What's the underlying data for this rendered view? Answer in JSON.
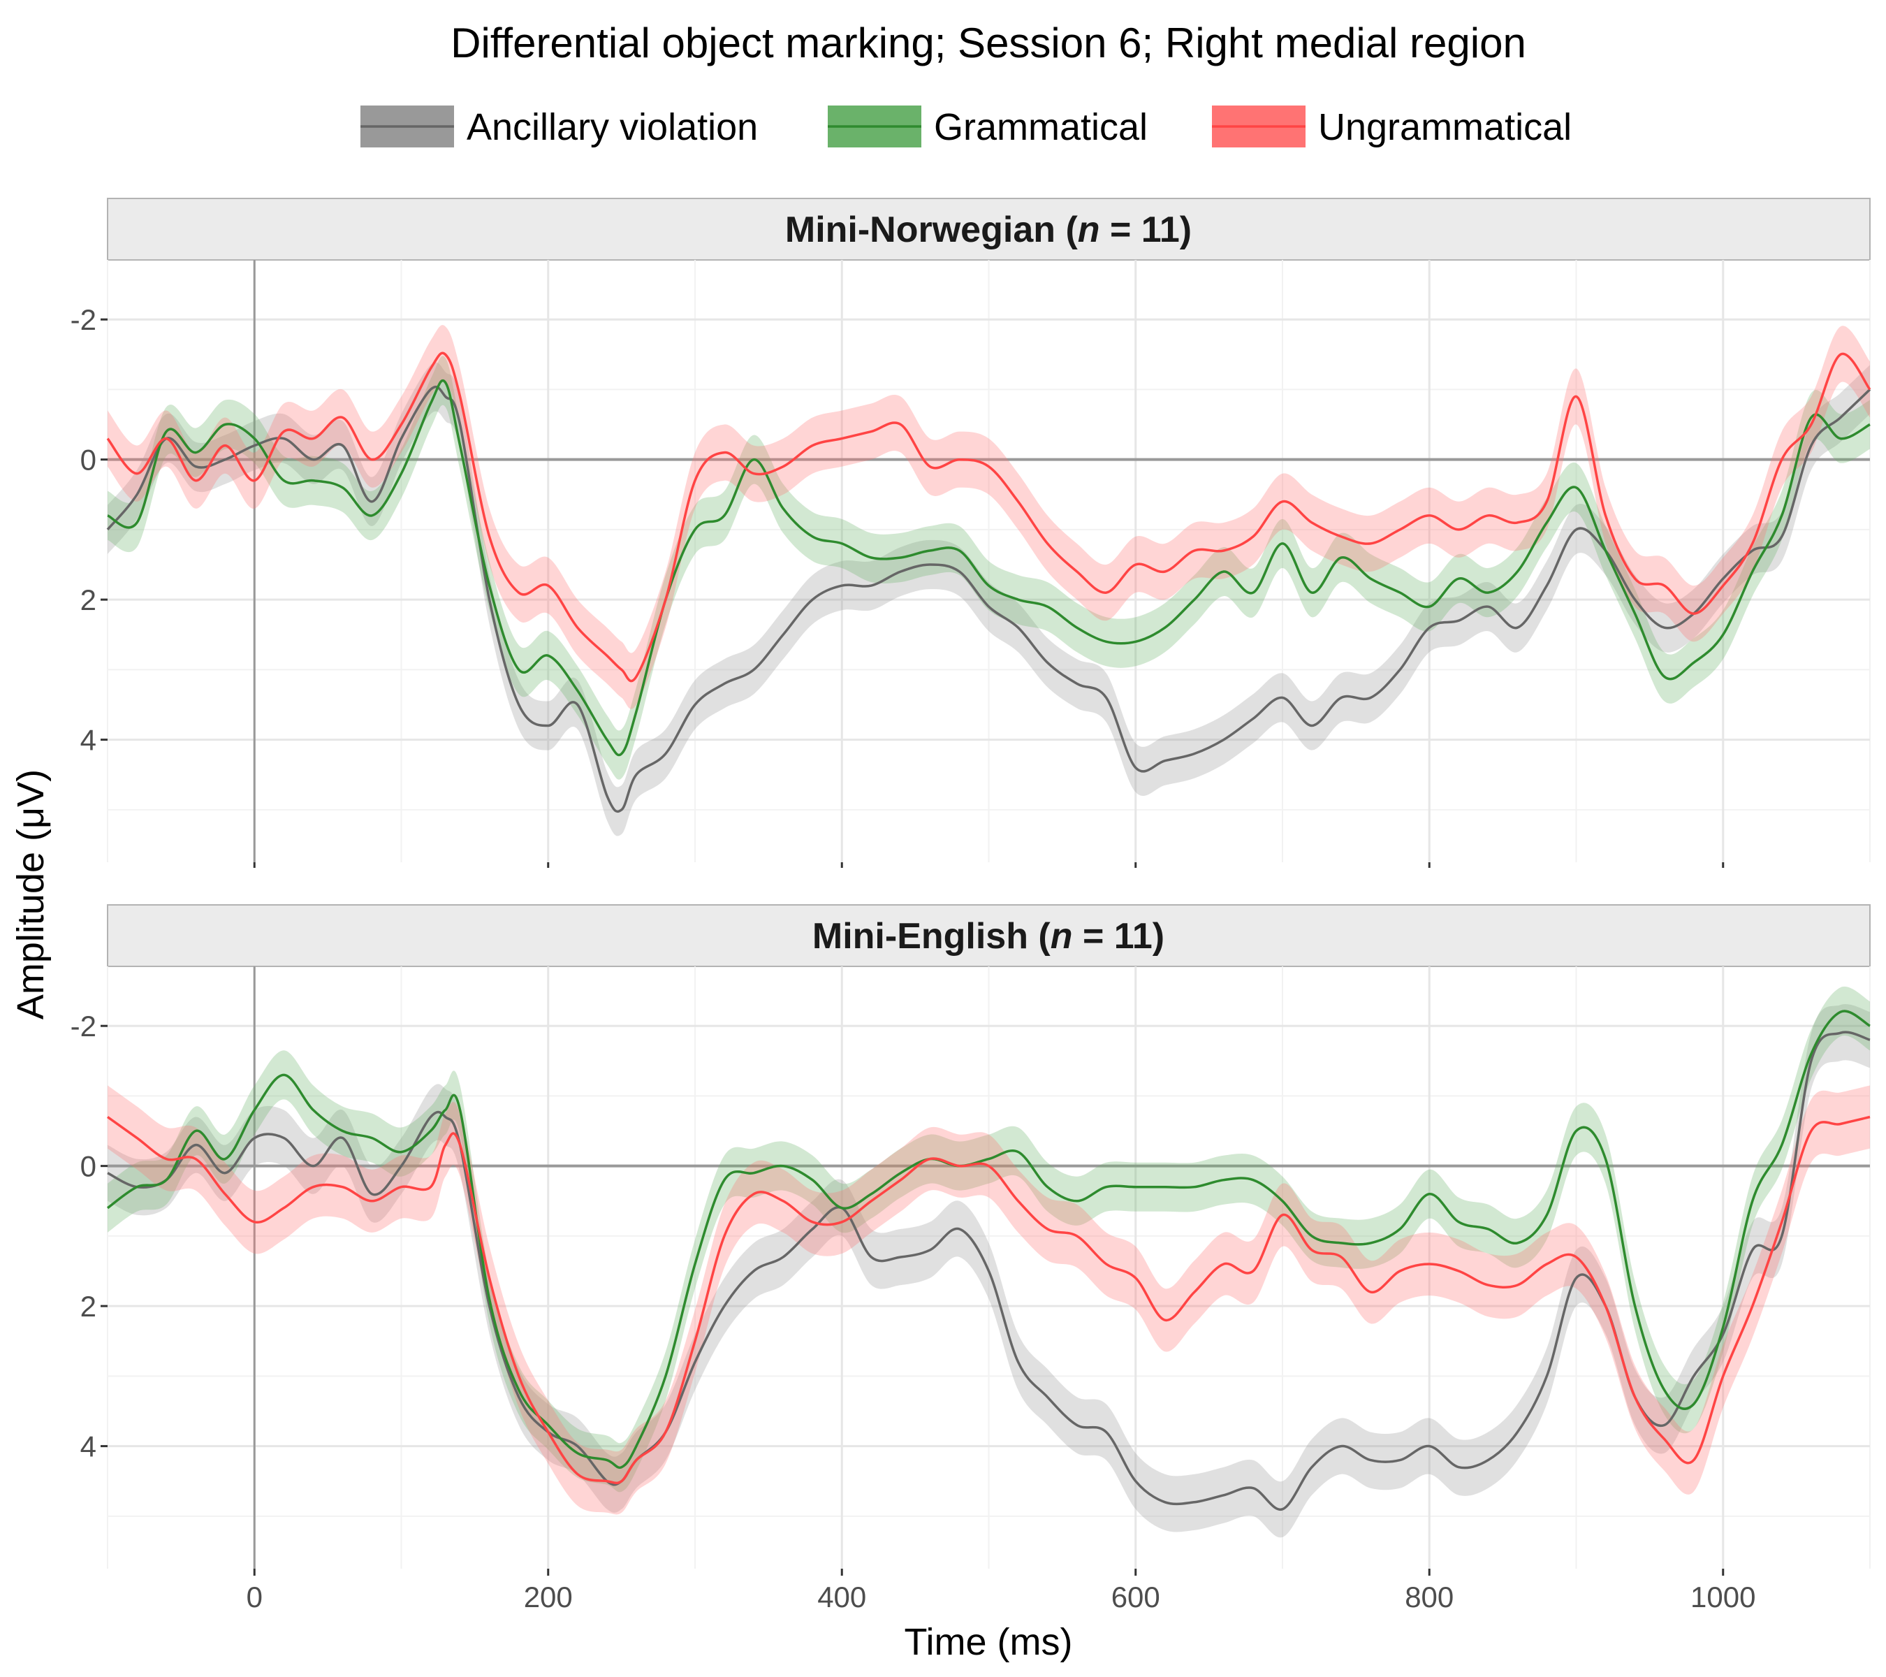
{
  "chart_data": {
    "type": "line",
    "title": "Differential object marking; Session 6; Right medial region",
    "xlabel": "Time (ms)",
    "ylabel": "Amplitude (μV)",
    "xlim": [
      -100,
      1100
    ],
    "xticks": [
      0,
      200,
      400,
      600,
      800,
      1000
    ],
    "yticks": [
      -2,
      0,
      2,
      4
    ],
    "y_axis_reversed": true,
    "grid": true,
    "legend_position": "top",
    "legend": [
      {
        "name": "Ancillary violation",
        "color": "#666666",
        "fill": "#999999"
      },
      {
        "name": "Grammatical",
        "color": "#2e8b2e",
        "fill": "#6ab26a"
      },
      {
        "name": "Ungrammatical",
        "color": "#ff4444",
        "fill": "#ff7373"
      }
    ],
    "panels": [
      {
        "title_prefix": "Mini-Norwegian (",
        "title_italic": "n",
        "title_suffix": " = 11)",
        "ylim": [
          -2.85,
          5.75
        ],
        "x": [
          -100,
          -80,
          -60,
          -40,
          -20,
          0,
          20,
          40,
          60,
          80,
          100,
          120,
          130,
          140,
          160,
          180,
          200,
          220,
          240,
          250,
          260,
          280,
          300,
          320,
          340,
          360,
          380,
          400,
          420,
          440,
          460,
          480,
          500,
          520,
          540,
          560,
          580,
          600,
          620,
          640,
          660,
          680,
          700,
          720,
          740,
          760,
          780,
          800,
          820,
          840,
          860,
          880,
          900,
          920,
          940,
          960,
          980,
          1000,
          1020,
          1040,
          1060,
          1080,
          1100
        ],
        "series": [
          {
            "name": "Ancillary violation",
            "band": 0.35,
            "values": [
              1.0,
              0.5,
              -0.3,
              0.1,
              0.0,
              -0.2,
              -0.3,
              0.0,
              -0.2,
              0.6,
              -0.3,
              -1.0,
              -0.9,
              -0.5,
              2.0,
              3.5,
              3.8,
              3.5,
              4.8,
              5.0,
              4.5,
              4.2,
              3.5,
              3.2,
              3.0,
              2.5,
              2.0,
              1.8,
              1.8,
              1.6,
              1.5,
              1.6,
              2.1,
              2.4,
              2.9,
              3.2,
              3.4,
              4.4,
              4.3,
              4.2,
              4.0,
              3.7,
              3.4,
              3.8,
              3.4,
              3.4,
              3.0,
              2.4,
              2.3,
              2.1,
              2.4,
              1.8,
              1.0,
              1.3,
              2.0,
              2.4,
              2.2,
              1.7,
              1.3,
              1.1,
              -0.2,
              -0.6,
              -1.0
            ]
          },
          {
            "name": "Grammatical",
            "band": 0.35,
            "values": [
              0.8,
              0.9,
              -0.4,
              -0.1,
              -0.5,
              -0.3,
              0.3,
              0.3,
              0.4,
              0.8,
              0.2,
              -0.8,
              -1.1,
              -0.2,
              1.8,
              3.0,
              2.8,
              3.3,
              4.0,
              4.2,
              3.6,
              2.0,
              1.0,
              0.8,
              0.0,
              0.7,
              1.1,
              1.2,
              1.4,
              1.4,
              1.3,
              1.3,
              1.8,
              2.0,
              2.1,
              2.4,
              2.6,
              2.6,
              2.4,
              2.0,
              1.6,
              1.9,
              1.2,
              1.9,
              1.4,
              1.7,
              1.9,
              2.1,
              1.7,
              1.9,
              1.6,
              0.9,
              0.4,
              1.3,
              2.2,
              3.1,
              2.9,
              2.5,
              1.6,
              0.8,
              -0.6,
              -0.3,
              -0.5
            ]
          },
          {
            "name": "Ungrammatical",
            "band": 0.4,
            "values": [
              -0.3,
              0.2,
              -0.3,
              0.3,
              -0.2,
              0.3,
              -0.4,
              -0.3,
              -0.6,
              0.0,
              -0.5,
              -1.3,
              -1.5,
              -0.9,
              1.1,
              1.9,
              1.8,
              2.4,
              2.8,
              3.0,
              3.1,
              2.0,
              0.3,
              -0.1,
              0.2,
              0.1,
              -0.2,
              -0.3,
              -0.4,
              -0.5,
              0.1,
              0.0,
              0.1,
              0.6,
              1.2,
              1.6,
              1.9,
              1.5,
              1.6,
              1.3,
              1.3,
              1.1,
              0.6,
              0.9,
              1.1,
              1.2,
              1.0,
              0.8,
              1.0,
              0.8,
              0.9,
              0.6,
              -0.9,
              0.8,
              1.7,
              1.8,
              2.2,
              1.8,
              1.2,
              0.0,
              -0.5,
              -1.5,
              -1.0
            ]
          }
        ]
      },
      {
        "title_prefix": "Mini-English (",
        "title_italic": "n",
        "title_suffix": " = 11)",
        "ylim": [
          -2.85,
          5.75
        ],
        "x": [
          -100,
          -80,
          -60,
          -40,
          -20,
          0,
          20,
          40,
          60,
          80,
          100,
          120,
          130,
          140,
          160,
          180,
          200,
          220,
          240,
          250,
          260,
          280,
          300,
          320,
          340,
          360,
          380,
          400,
          420,
          440,
          460,
          480,
          500,
          520,
          540,
          560,
          580,
          600,
          620,
          640,
          660,
          680,
          700,
          720,
          740,
          760,
          780,
          800,
          820,
          840,
          860,
          880,
          900,
          920,
          940,
          960,
          980,
          1000,
          1020,
          1040,
          1060,
          1080,
          1100
        ],
        "series": [
          {
            "name": "Ancillary violation",
            "band": 0.4,
            "values": [
              0.1,
              0.3,
              0.2,
              -0.3,
              0.1,
              -0.4,
              -0.4,
              0.0,
              -0.4,
              0.4,
              0.0,
              -0.7,
              -0.7,
              -0.3,
              2.0,
              3.3,
              3.8,
              4.0,
              4.5,
              4.5,
              4.2,
              3.8,
              2.8,
              2.0,
              1.5,
              1.3,
              0.9,
              0.6,
              1.3,
              1.3,
              1.2,
              0.9,
              1.5,
              2.8,
              3.3,
              3.7,
              3.8,
              4.5,
              4.8,
              4.8,
              4.7,
              4.6,
              4.9,
              4.3,
              4.0,
              4.2,
              4.2,
              4.0,
              4.3,
              4.2,
              3.8,
              3.0,
              1.6,
              2.0,
              3.3,
              3.7,
              3.0,
              2.4,
              1.2,
              1.0,
              -1.5,
              -1.9,
              -1.8
            ]
          },
          {
            "name": "Grammatical",
            "band": 0.35,
            "values": [
              0.6,
              0.3,
              0.2,
              -0.5,
              -0.1,
              -0.8,
              -1.3,
              -0.8,
              -0.5,
              -0.4,
              -0.2,
              -0.5,
              -0.8,
              -0.8,
              1.9,
              3.2,
              3.7,
              4.1,
              4.2,
              4.3,
              4.0,
              3.0,
              1.4,
              0.2,
              0.1,
              0.0,
              0.2,
              0.6,
              0.4,
              0.1,
              -0.1,
              0.0,
              -0.1,
              -0.2,
              0.3,
              0.5,
              0.3,
              0.3,
              0.3,
              0.3,
              0.2,
              0.2,
              0.5,
              1.0,
              1.1,
              1.1,
              0.9,
              0.4,
              0.8,
              0.9,
              1.1,
              0.7,
              -0.5,
              -0.1,
              2.0,
              3.2,
              3.4,
              2.3,
              0.5,
              -0.3,
              -1.6,
              -2.2,
              -2.0
            ]
          },
          {
            "name": "Ungrammatical",
            "band": 0.45,
            "values": [
              -0.7,
              -0.4,
              -0.1,
              -0.1,
              0.4,
              0.8,
              0.6,
              0.3,
              0.3,
              0.5,
              0.3,
              0.3,
              -0.3,
              -0.3,
              1.6,
              3.0,
              3.8,
              4.4,
              4.5,
              4.5,
              4.2,
              3.8,
              2.5,
              1.0,
              0.4,
              0.5,
              0.8,
              0.8,
              0.5,
              0.2,
              -0.1,
              0.0,
              0.0,
              0.5,
              0.9,
              1.0,
              1.4,
              1.6,
              2.2,
              1.8,
              1.4,
              1.5,
              0.7,
              1.2,
              1.3,
              1.8,
              1.5,
              1.4,
              1.5,
              1.7,
              1.7,
              1.4,
              1.3,
              2.0,
              3.3,
              3.9,
              4.2,
              3.0,
              2.0,
              0.8,
              -0.5,
              -0.6,
              -0.7
            ]
          }
        ]
      }
    ]
  }
}
